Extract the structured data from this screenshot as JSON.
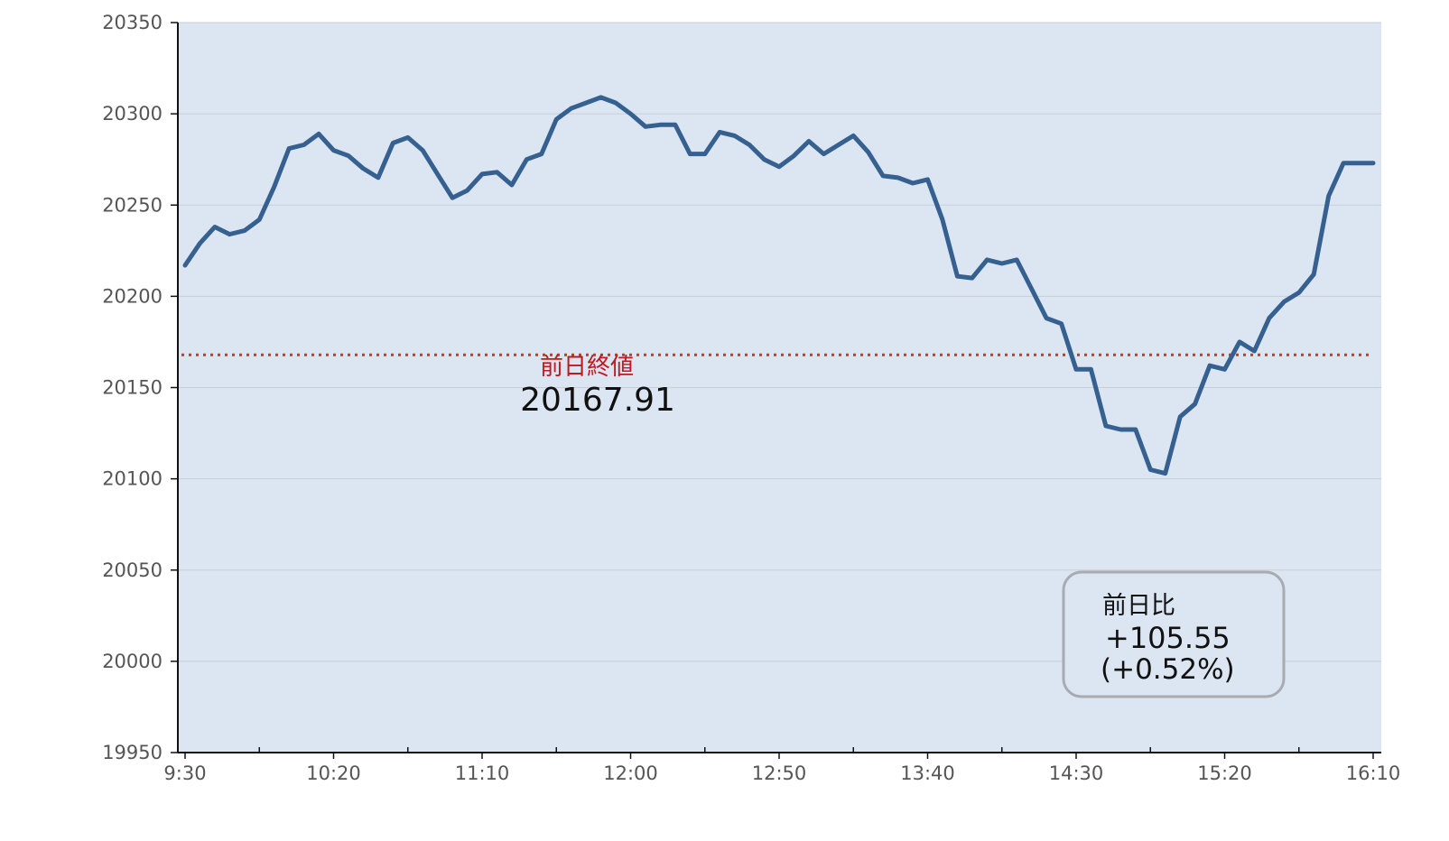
{
  "chart_data": {
    "type": "line",
    "ylim": [
      19950,
      20350
    ],
    "yticks": [
      19950,
      20000,
      20050,
      20100,
      20150,
      20200,
      20250,
      20300,
      20350
    ],
    "xlim": [
      0,
      81
    ],
    "xticks": [
      {
        "label": "9:30",
        "index": 0
      },
      {
        "label": "10:20",
        "index": 10
      },
      {
        "label": "11:10",
        "index": 20
      },
      {
        "label": "12:00",
        "index": 30
      },
      {
        "label": "12:50",
        "index": 40
      },
      {
        "label": "13:40",
        "index": 50
      },
      {
        "label": "14:30",
        "index": 60
      },
      {
        "label": "15:20",
        "index": 70
      },
      {
        "label": "16:10",
        "index": 80
      }
    ],
    "minor_xtick_indices": [
      5,
      15,
      25,
      35,
      45,
      55,
      65,
      75
    ],
    "grid": true,
    "series": [
      {
        "values": [
          20217,
          20229,
          20238,
          20234,
          20236,
          20242,
          20260,
          20281,
          20283,
          20289,
          20280,
          20277,
          20270,
          20265,
          20284,
          20287,
          20280,
          20267,
          20254,
          20258,
          20267,
          20268,
          20261,
          20275,
          20278,
          20297,
          20303,
          20306,
          20309,
          20306,
          20300,
          20293,
          20294,
          20294,
          20278,
          20278,
          20290,
          20288,
          20283,
          20275,
          20271,
          20277,
          20285,
          20278,
          20283,
          20288,
          20279,
          20266,
          20265,
          20262,
          20264,
          20242,
          20211,
          20210,
          20220,
          20218,
          20220,
          20204,
          20188,
          20185,
          20160,
          20160,
          20129,
          20127,
          20127,
          20105,
          20103,
          20134,
          20141,
          20162,
          20160,
          20175,
          20170,
          20188,
          20197,
          20202,
          20212,
          20255,
          20273,
          20273,
          20273
        ]
      }
    ],
    "reference_line": {
      "label": "前日終値",
      "value_text": "20167.91",
      "value": 20167.91
    },
    "change_box": {
      "label": "前日比",
      "change": "+105.55",
      "percent": "(+0.52%)"
    }
  },
  "colors": {
    "plot_background": "#dce6f2",
    "line": "#35608f",
    "reference_line": "#c0392b",
    "reference_label": "#c0191f",
    "grid": "#c8ced6",
    "axis": "#111111",
    "box_border": "#a8abb0"
  }
}
